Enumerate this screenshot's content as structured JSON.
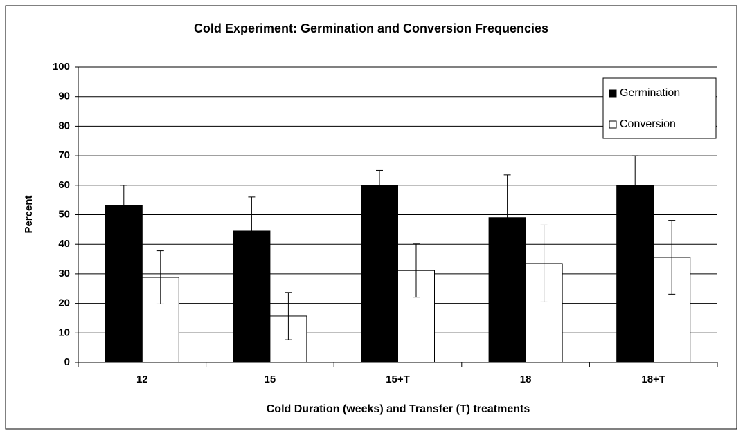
{
  "chart_data": {
    "type": "bar",
    "title": "Cold Experiment:  Germination and Conversion Frequencies",
    "x_label": "Cold Duration (weeks) and Transfer (T) treatments",
    "y_label": "Percent",
    "categories": [
      "12",
      "15",
      "15+T",
      "18",
      "18+T"
    ],
    "series": [
      {
        "name": "Germination",
        "color": "#000000",
        "values": [
          53.2,
          44.5,
          60,
          49,
          60
        ],
        "errors": [
          6.8,
          11.5,
          5,
          14.5,
          10
        ]
      },
      {
        "name": "Conversion",
        "color": "#ffffff",
        "values": [
          28.8,
          15.7,
          31.1,
          33.5,
          35.6
        ],
        "errors": [
          9,
          8,
          9,
          13,
          12.5
        ]
      }
    ],
    "ylim": [
      0,
      100
    ],
    "yticks": [
      0,
      10,
      20,
      30,
      40,
      50,
      60,
      70,
      80,
      90,
      100
    ],
    "grid": true,
    "legend": "upper right"
  }
}
